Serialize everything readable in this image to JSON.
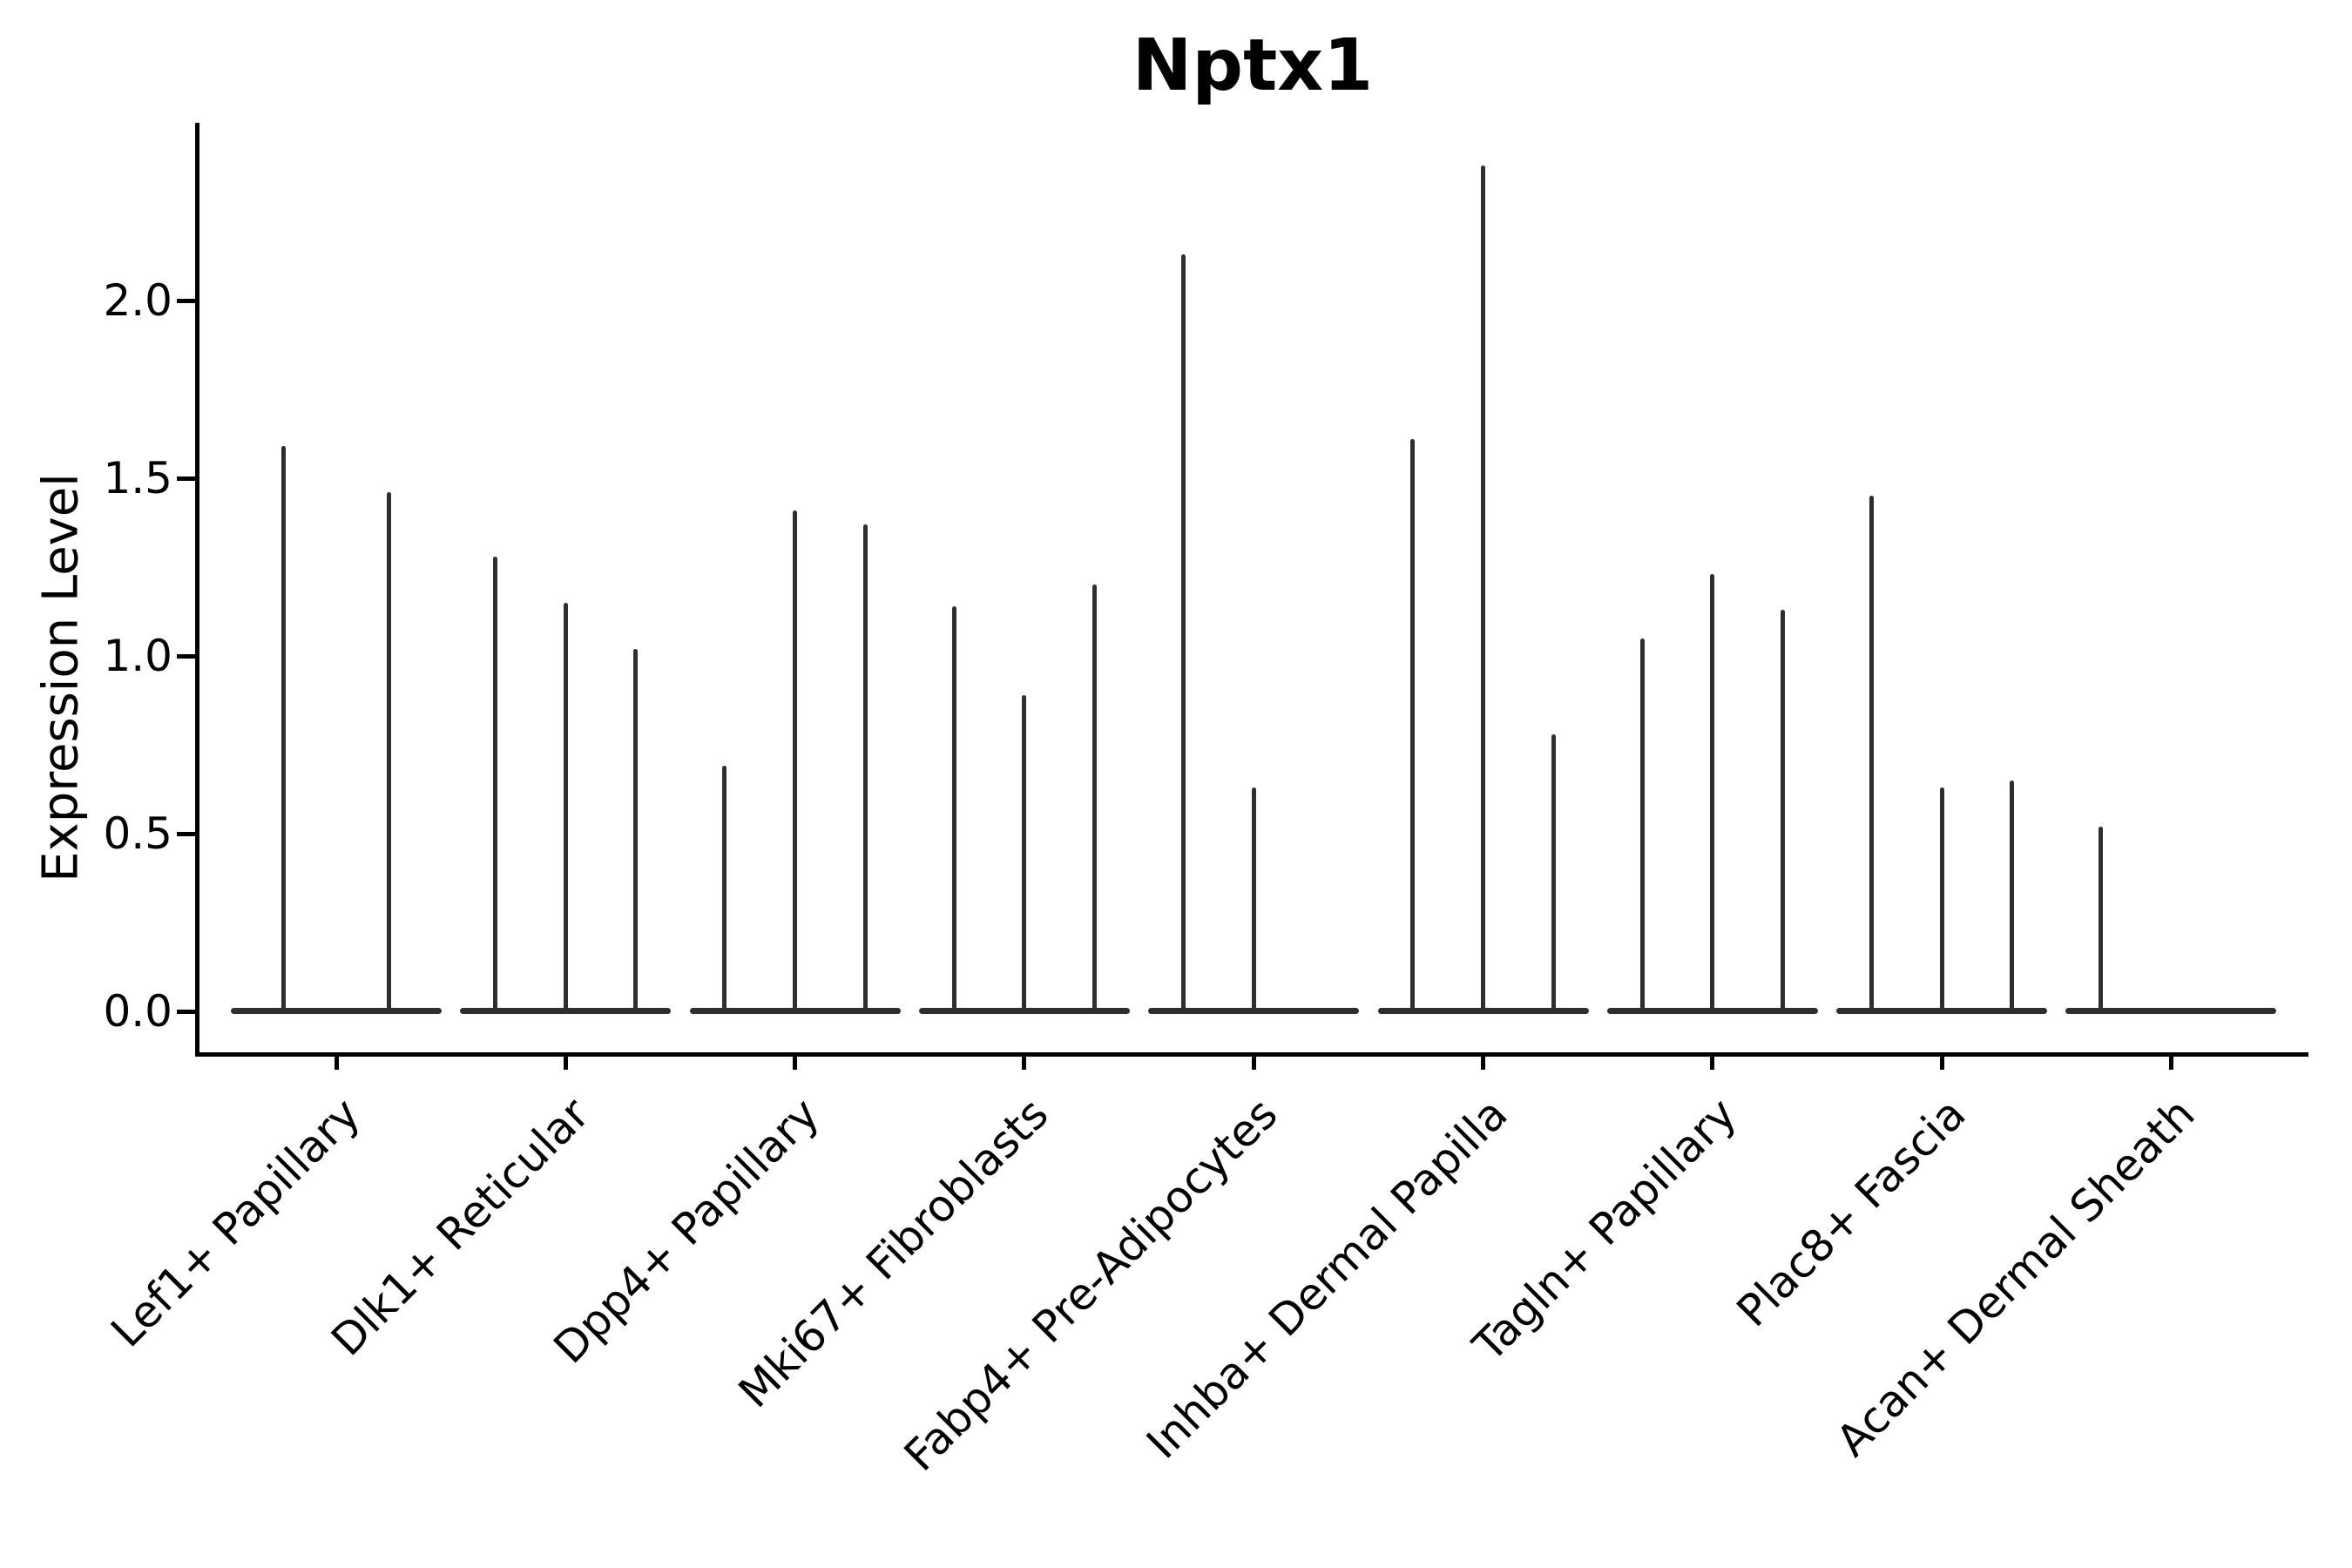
{
  "figure": {
    "title": "Nptx1",
    "y_axis_label": "Expression Level"
  },
  "chart_data": {
    "type": "violin",
    "title": "Nptx1",
    "xlabel": "",
    "ylabel": "Expression Level",
    "ylim": [
      -0.12,
      2.5
    ],
    "yticks": [
      0.0,
      0.5,
      1.0,
      1.5,
      2.0
    ],
    "ytick_labels": [
      "0.0",
      "0.5",
      "1.0",
      "1.5",
      "2.0"
    ],
    "grid": false,
    "legend": "none",
    "note": "Collapsed violins: bulk of cells at 0 expression (flat base), thin spike up to max expression; 2-3 violins (samples) per cluster",
    "categories": [
      "Lef1+ Papillary",
      "Dlk1+ Reticular",
      "Dpp4+ Papillary",
      "Mki67+ Fibroblasts",
      "Fabp4+ Pre-Adipocytes",
      "Inhba+ Dermal Papilla",
      "Tagln+ Papillary",
      "Plac8+ Fascia",
      "Acan+ Dermal Sheath"
    ],
    "series": [
      {
        "category": "Lef1+ Papillary",
        "violin_max_expression": [
          1.59,
          1.46
        ]
      },
      {
        "category": "Dlk1+ Reticular",
        "violin_max_expression": [
          1.28,
          1.15,
          1.02
        ]
      },
      {
        "category": "Dpp4+ Papillary",
        "violin_max_expression": [
          0.69,
          1.41,
          1.37
        ]
      },
      {
        "category": "Mki67+ Fibroblasts",
        "violin_max_expression": [
          1.14,
          0.89,
          1.2
        ]
      },
      {
        "category": "Fabp4+ Pre-Adipocytes",
        "violin_max_expression": [
          2.13,
          0.63,
          null
        ]
      },
      {
        "category": "Inhba+ Dermal Papilla",
        "violin_max_expression": [
          1.61,
          2.38,
          0.78
        ]
      },
      {
        "category": "Tagln+ Papillary",
        "violin_max_expression": [
          1.05,
          1.23,
          1.13
        ]
      },
      {
        "category": "Plac8+ Fascia",
        "violin_max_expression": [
          1.45,
          0.63,
          0.65
        ]
      },
      {
        "category": "Acan+ Dermal Sheath",
        "violin_max_expression": [
          0.52,
          null,
          null
        ]
      }
    ]
  }
}
